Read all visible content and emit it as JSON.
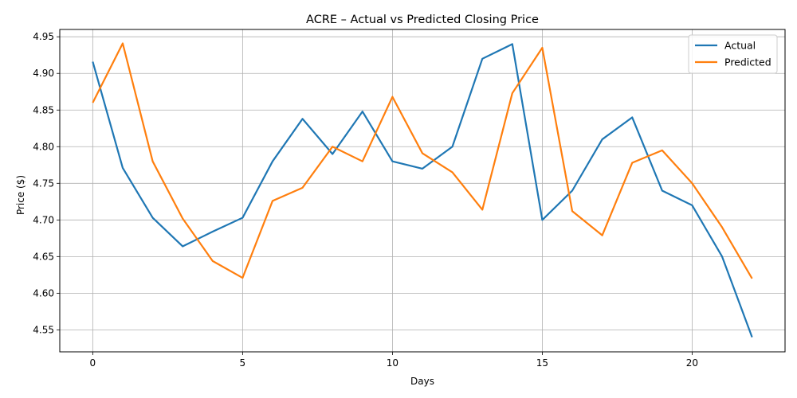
{
  "chart_data": {
    "type": "line",
    "title": "ACRE – Actual vs Predicted Closing Price",
    "xlabel": "Days",
    "ylabel": "Price ($)",
    "xlim": [
      -1.1,
      23.1
    ],
    "ylim": [
      4.52,
      4.96
    ],
    "xticks": [
      0,
      5,
      10,
      15,
      20
    ],
    "yticks": [
      4.55,
      4.6,
      4.65,
      4.7,
      4.75,
      4.8,
      4.85,
      4.9,
      4.95
    ],
    "xtick_labels": [
      "0",
      "5",
      "10",
      "15",
      "20"
    ],
    "ytick_labels": [
      "4.55",
      "4.60",
      "4.65",
      "4.70",
      "4.75",
      "4.80",
      "4.85",
      "4.90",
      "4.95"
    ],
    "grid": true,
    "legend_position": "top-right",
    "x": [
      0,
      1,
      2,
      3,
      4,
      5,
      6,
      7,
      8,
      9,
      10,
      11,
      12,
      13,
      14,
      15,
      16,
      17,
      18,
      19,
      20,
      21,
      22
    ],
    "series": [
      {
        "name": "Actual",
        "color": "#1f77b4",
        "values": [
          4.916,
          4.771,
          4.703,
          4.664,
          4.684,
          4.703,
          4.78,
          4.838,
          4.79,
          4.848,
          4.78,
          4.77,
          4.8,
          4.92,
          4.94,
          4.7,
          4.74,
          4.81,
          4.84,
          4.74,
          4.72,
          4.65,
          4.54
        ]
      },
      {
        "name": "Predicted",
        "color": "#ff7f0e",
        "values": [
          4.86,
          4.941,
          4.78,
          4.702,
          4.644,
          4.621,
          4.726,
          4.744,
          4.8,
          4.78,
          4.868,
          4.791,
          4.765,
          4.714,
          4.873,
          4.935,
          4.712,
          4.679,
          4.778,
          4.795,
          4.75,
          4.69,
          4.62
        ]
      }
    ]
  }
}
